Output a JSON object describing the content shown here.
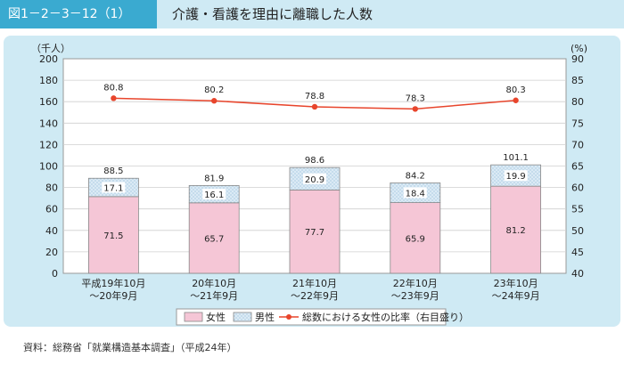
{
  "header": {
    "figure_label": "図1－2－3－12（1）",
    "title": "介護・看護を理由に離職した人数"
  },
  "colors": {
    "header_accent": "#3aaad0",
    "panel_bg": "#cfeaf4",
    "female_fill": "#f5c6d6",
    "male_fill": "#dbeaf5",
    "line": "#e8452c"
  },
  "chart_data": {
    "type": "bar",
    "stacked": true,
    "categories": [
      [
        "平成19年10月",
        "～20年9月"
      ],
      [
        "20年10月",
        "～21年9月"
      ],
      [
        "21年10月",
        "～22年9月"
      ],
      [
        "22年10月",
        "～23年9月"
      ],
      [
        "23年10月",
        "～24年9月"
      ]
    ],
    "series": [
      {
        "name": "女性",
        "values": [
          71.5,
          65.7,
          77.7,
          65.9,
          81.2
        ]
      },
      {
        "name": "男性",
        "values": [
          17.1,
          16.1,
          20.9,
          18.4,
          19.9
        ]
      }
    ],
    "totals": [
      88.5,
      81.9,
      98.6,
      84.2,
      101.1
    ],
    "line_series": {
      "name": "総数における女性の比率（右目盛り）",
      "values": [
        80.8,
        80.2,
        78.8,
        78.3,
        80.3
      ],
      "axis": "right"
    },
    "ylabel": "（千人）",
    "y2label": "(%)",
    "ylim": [
      0,
      200
    ],
    "y2lim": [
      40,
      90
    ],
    "yticks": [
      "0",
      "20",
      "40",
      "60",
      "80",
      "100",
      "120",
      "140",
      "160",
      "180",
      "200"
    ],
    "y2ticks": [
      "40",
      "45",
      "50",
      "55",
      "60",
      "65",
      "70",
      "75",
      "80",
      "85",
      "90"
    ],
    "legend": {
      "position": "bottom",
      "items": [
        "女性",
        "男性",
        "総数における女性の比率（右目盛り）"
      ]
    }
  },
  "source": "資料：総務省「就業構造基本調査」（平成24年）"
}
